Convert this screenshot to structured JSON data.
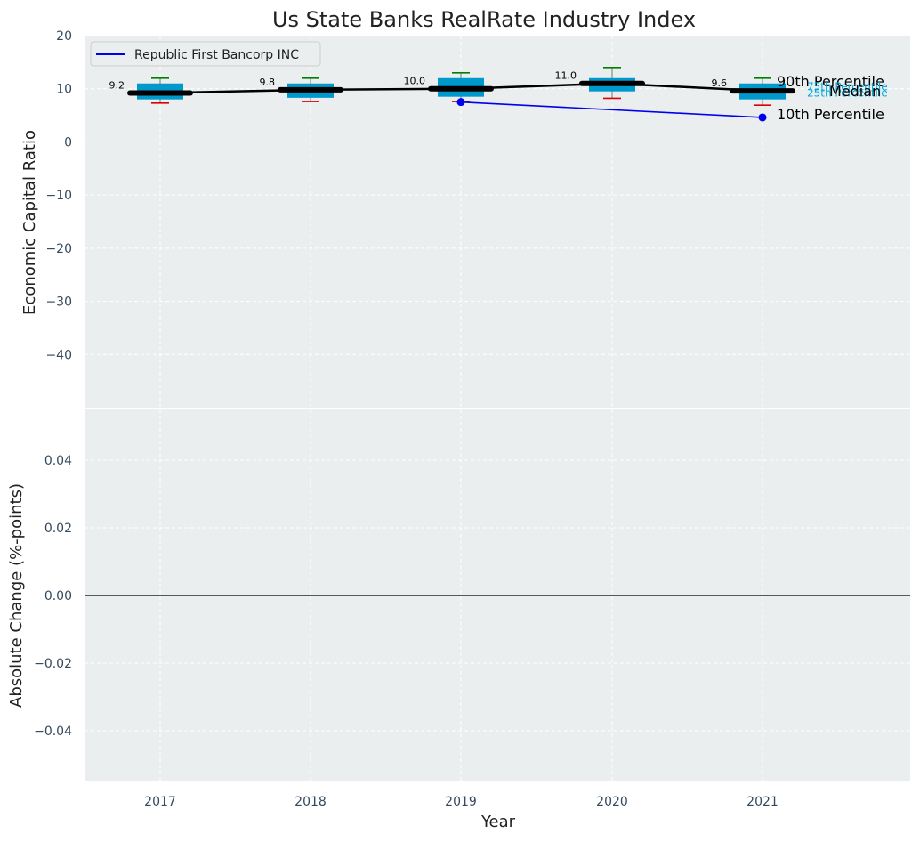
{
  "chart_data": {
    "type": "box",
    "title": "Us State Banks RealRate Industry Index",
    "xlabel": "Year",
    "top_panel": {
      "ylabel": "Economic Capital Ratio",
      "ylim": [
        -50,
        20
      ],
      "yticks": [
        20,
        10,
        0,
        -10,
        -20,
        -30,
        -40
      ],
      "ytick_labels": [
        "20",
        "10",
        "0",
        "−10",
        "−20",
        "−30",
        "−40"
      ],
      "grid": true,
      "legend_placement": "top-left",
      "categories": [
        "2017",
        "2018",
        "2019",
        "2020",
        "2021"
      ],
      "boxes": [
        {
          "year": "2017",
          "p10": 7.3,
          "p25": 8.0,
          "median": 9.2,
          "p75": 11.0,
          "p90": 12.0,
          "label": "9.2"
        },
        {
          "year": "2018",
          "p10": 7.6,
          "p25": 8.3,
          "median": 9.8,
          "p75": 11.0,
          "p90": 12.0,
          "label": "9.8"
        },
        {
          "year": "2019",
          "p10": 7.6,
          "p25": 8.5,
          "median": 10.0,
          "p75": 12.0,
          "p90": 13.0,
          "label": "10.0"
        },
        {
          "year": "2020",
          "p10": 8.2,
          "p25": 9.5,
          "median": 11.0,
          "p75": 12.0,
          "p90": 14.0,
          "label": "11.0"
        },
        {
          "year": "2021",
          "p10": 6.9,
          "p25": 8.0,
          "median": 9.6,
          "p75": 11.0,
          "p90": 12.0,
          "label": "9.6"
        }
      ],
      "series": [
        {
          "name": "Republic First Bancorp INC",
          "x": [
            "2019",
            "2021"
          ],
          "values": [
            7.5,
            4.6
          ]
        }
      ],
      "annotations": {
        "p90": "90th Percentile",
        "p75": "75th Percentile",
        "median": "Median",
        "p25": "25th Percentile",
        "p10": "10th Percentile"
      }
    },
    "bottom_panel": {
      "ylabel": "Absolute Change (%-points)",
      "ylim": [
        -0.055,
        0.055
      ],
      "yticks": [
        0.04,
        0.02,
        0.0,
        -0.02,
        -0.04
      ],
      "ytick_labels": [
        "0.04",
        "0.02",
        "0.00",
        "−0.02",
        "−0.04"
      ],
      "grid": true,
      "zero_line": true
    },
    "colors": {
      "plot_background": "#EAEEEF",
      "box_fill": "#0099CC",
      "median_line": "#000000",
      "whisker_high": "#008000",
      "whisker_low": "#DD0000",
      "company_series": "#0000EE",
      "tick_text": "#34495E",
      "annotation_blue": "#00AADD"
    }
  }
}
